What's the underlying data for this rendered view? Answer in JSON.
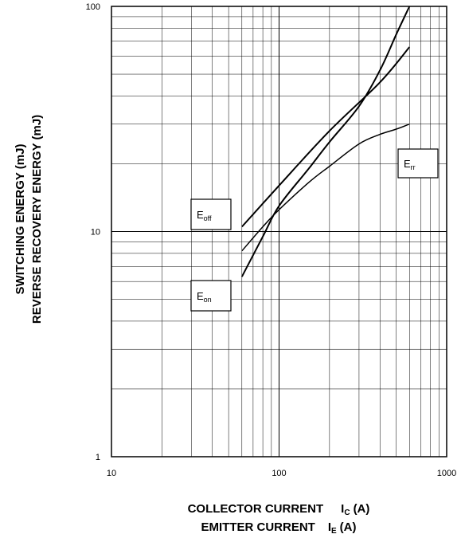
{
  "chart_data": {
    "type": "line",
    "x_scale": "log",
    "y_scale": "log",
    "xlim": [
      10,
      1000
    ],
    "ylim": [
      1,
      100
    ],
    "grid": true,
    "x_ticks": [
      "10",
      "100",
      "1000"
    ],
    "y_ticks": [
      "1",
      "10",
      "100"
    ],
    "ylabel_lines": [
      "SWITCHING ENERGY (mJ)",
      "REVERSE RECOVERY ENERGY (mJ)"
    ],
    "xlabel_lines": [
      {
        "text": "COLLECTOR CURRENT",
        "symbol": "I",
        "sub": "C",
        "unit": "(A)"
      },
      {
        "text": "EMITTER CURRENT",
        "symbol": "I",
        "sub": "E",
        "unit": "(A)"
      }
    ],
    "series": [
      {
        "name": "E off",
        "label_main": "E",
        "label_sub": "off",
        "x": [
          60,
          100,
          200,
          400,
          600
        ],
        "y": [
          10.5,
          16,
          28,
          46,
          66
        ]
      },
      {
        "name": "E on",
        "label_main": "E",
        "label_sub": "on",
        "x": [
          60,
          80,
          100,
          150,
          200,
          300,
          400,
          500,
          600
        ],
        "y": [
          6.3,
          9.5,
          13,
          19,
          25,
          36,
          52,
          75,
          100
        ]
      },
      {
        "name": "E rr",
        "label_main": "E",
        "label_sub": "rr",
        "x": [
          60,
          80,
          100,
          150,
          200,
          300,
          400,
          500,
          600
        ],
        "y": [
          8.2,
          10.5,
          12.5,
          16.5,
          19.5,
          24.5,
          27,
          28.5,
          30
        ]
      }
    ]
  }
}
